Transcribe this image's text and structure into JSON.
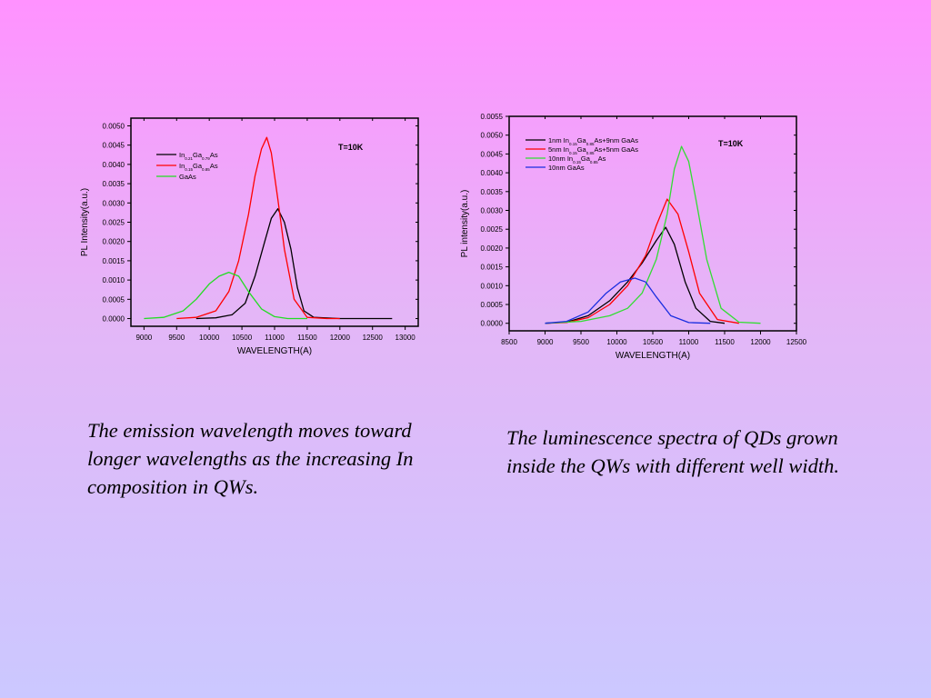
{
  "captions": {
    "left": "The emission wavelength moves toward longer wavelengths as the increasing In composition in QWs.",
    "right": "The luminescence spectra of QDs grown inside the QWs with different well width."
  },
  "chart_data": [
    {
      "type": "line",
      "title": "",
      "annotation": "T=10K",
      "xlabel": "WAVELENGTH(A)",
      "ylabel": "PL Intensity(a.u.)",
      "xlim": [
        8800,
        13200
      ],
      "ylim": [
        -0.0002,
        0.0052
      ],
      "xticks": [
        9000,
        9500,
        10000,
        10500,
        11000,
        11500,
        12000,
        12500,
        13000
      ],
      "yticks": [
        0,
        0.0005,
        0.001,
        0.0015,
        0.002,
        0.0025,
        0.003,
        0.0035,
        0.004,
        0.0045,
        0.005
      ],
      "legend_position": "top-left",
      "series": [
        {
          "name": "In0.21Ga0.79As",
          "legend": {
            "base": "In",
            "sub1": "0.21",
            "mid": "Ga",
            "sub2": "0.79",
            "end": "As"
          },
          "color": "#000000",
          "x": [
            9800,
            10100,
            10350,
            10550,
            10700,
            10850,
            10950,
            11050,
            11150,
            11250,
            11350,
            11450,
            11600,
            12000,
            12800
          ],
          "y": [
            0.0,
            2e-05,
            0.0001,
            0.0004,
            0.0011,
            0.002,
            0.0026,
            0.00285,
            0.0025,
            0.0018,
            0.0008,
            0.0002,
            3e-05,
            0.0,
            0.0
          ]
        },
        {
          "name": "In0.15Ga0.85As",
          "legend": {
            "base": "In",
            "sub1": "0.15",
            "mid": "Ga",
            "sub2": "0.85",
            "end": "As"
          },
          "color": "#ff0000",
          "x": [
            9500,
            9800,
            10100,
            10300,
            10450,
            10600,
            10700,
            10800,
            10880,
            10950,
            11050,
            11150,
            11300,
            11500,
            11800,
            12000
          ],
          "y": [
            0.0,
            3e-05,
            0.0002,
            0.0007,
            0.0015,
            0.0027,
            0.0037,
            0.0044,
            0.0047,
            0.0043,
            0.0031,
            0.0018,
            0.0005,
            3e-05,
            0.0,
            0.0
          ]
        },
        {
          "name": "GaAs",
          "legend": {
            "base": "GaAs",
            "sub1": "",
            "mid": "",
            "sub2": "",
            "end": ""
          },
          "color": "#22dd22",
          "x": [
            9000,
            9300,
            9600,
            9800,
            10000,
            10150,
            10300,
            10450,
            10600,
            10800,
            11000,
            11200,
            11500
          ],
          "y": [
            0.0,
            3e-05,
            0.0002,
            0.0005,
            0.0009,
            0.0011,
            0.0012,
            0.0011,
            0.0007,
            0.00025,
            5e-05,
            0.0,
            0.0
          ]
        }
      ]
    },
    {
      "type": "line",
      "title": "",
      "annotation": "T=10K",
      "xlabel": "WAVELENGTH(A)",
      "ylabel": "PL intensity(a.u.)",
      "xlim": [
        8500,
        12500
      ],
      "ylim": [
        -0.0002,
        0.0055
      ],
      "xticks": [
        8500,
        9000,
        9500,
        10000,
        10500,
        11000,
        11500,
        12000,
        12500
      ],
      "yticks": [
        0,
        0.0005,
        0.001,
        0.0015,
        0.002,
        0.0025,
        0.003,
        0.0035,
        0.004,
        0.0045,
        0.005,
        0.0055
      ],
      "legend_position": "top-left",
      "series": [
        {
          "name": "1nm In0.15Ga0.85As+9nm GaAs",
          "legend": {
            "base": "1nm In",
            "sub1": "0.15",
            "mid": "Ga",
            "sub2": "0.85",
            "end": "As+9nm GaAs"
          },
          "color": "#000000",
          "x": [
            9000,
            9300,
            9600,
            9900,
            10150,
            10350,
            10550,
            10680,
            10800,
            10950,
            11100,
            11300,
            11500
          ],
          "y": [
            0.0,
            3e-05,
            0.0002,
            0.0006,
            0.0011,
            0.0016,
            0.0022,
            0.00255,
            0.0021,
            0.0011,
            0.0004,
            5e-05,
            0.0
          ]
        },
        {
          "name": "5nm In0.15Ga0.85As+5nm GaAs",
          "legend": {
            "base": "5nm In",
            "sub1": "0.15",
            "mid": "Ga",
            "sub2": "0.85",
            "end": "As+5nm GaAs"
          },
          "color": "#ff0000",
          "x": [
            9000,
            9300,
            9600,
            9900,
            10150,
            10400,
            10550,
            10700,
            10850,
            11000,
            11150,
            11400,
            11700
          ],
          "y": [
            0.0,
            2e-05,
            0.00015,
            0.0005,
            0.001,
            0.0018,
            0.0026,
            0.0033,
            0.0029,
            0.0019,
            0.0008,
            0.0001,
            0.0
          ]
        },
        {
          "name": "10nm In0.15Ga0.85As",
          "legend": {
            "base": "10nm In",
            "sub1": "0.15",
            "mid": "Ga",
            "sub2": "0.85",
            "end": "As"
          },
          "color": "#33dd33",
          "x": [
            9000,
            9500,
            9900,
            10150,
            10350,
            10550,
            10700,
            10800,
            10900,
            11000,
            11100,
            11250,
            11450,
            11700,
            12000
          ],
          "y": [
            0.0,
            5e-05,
            0.0002,
            0.0004,
            0.0008,
            0.0017,
            0.0029,
            0.0041,
            0.0047,
            0.0043,
            0.0033,
            0.0017,
            0.0004,
            3e-05,
            0.0
          ]
        },
        {
          "name": "10nm GaAs",
          "legend": {
            "base": "10nm GaAs",
            "sub1": "",
            "mid": "",
            "sub2": "",
            "end": ""
          },
          "color": "#1a2ee0",
          "x": [
            9000,
            9300,
            9600,
            9850,
            10050,
            10250,
            10400,
            10550,
            10750,
            11000,
            11300
          ],
          "y": [
            0.0,
            5e-05,
            0.0003,
            0.0008,
            0.0011,
            0.0012,
            0.0011,
            0.0007,
            0.0002,
            2e-05,
            0.0
          ]
        }
      ]
    }
  ]
}
